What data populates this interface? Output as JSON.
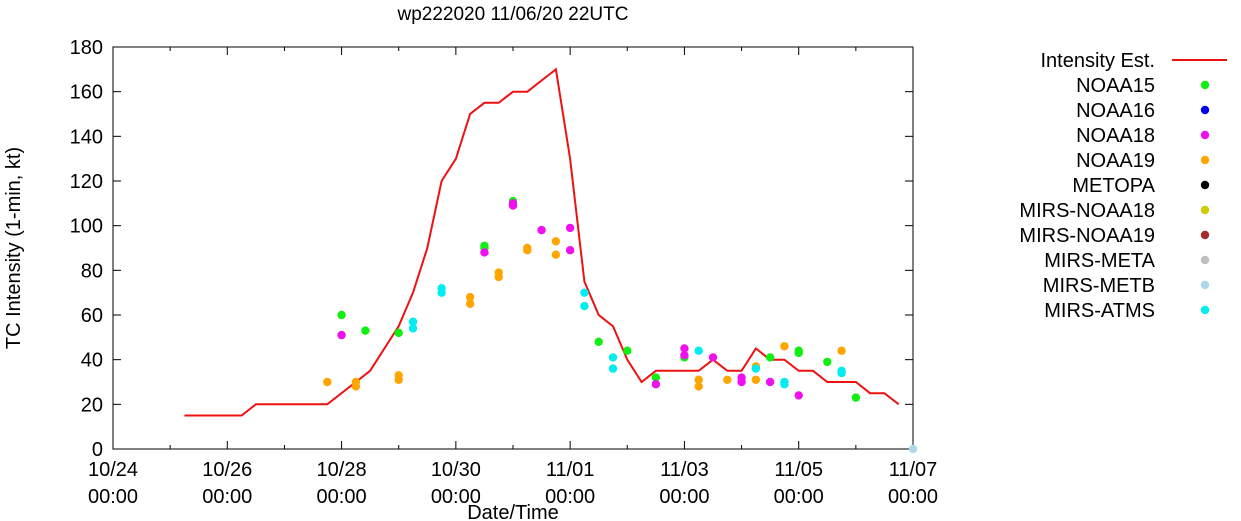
{
  "chart_data": {
    "type": "scatter",
    "title": "wp222020 11/06/20 22UTC",
    "xlabel": "Date/Time",
    "ylabel": "TC Intensity (1-min, kt)",
    "xlim": [
      "2020-10-24T00:00",
      "2020-11-07T00:00"
    ],
    "ylim": [
      0,
      180
    ],
    "grid": false,
    "legend_position": "right",
    "x_ticks": [
      {
        "x": "2020-10-24T00:00",
        "line1": "10/24",
        "line2": "00:00"
      },
      {
        "x": "2020-10-26T00:00",
        "line1": "10/26",
        "line2": "00:00"
      },
      {
        "x": "2020-10-28T00:00",
        "line1": "10/28",
        "line2": "00:00"
      },
      {
        "x": "2020-10-30T00:00",
        "line1": "10/30",
        "line2": "00:00"
      },
      {
        "x": "2020-11-01T00:00",
        "line1": "11/01",
        "line2": "00:00"
      },
      {
        "x": "2020-11-03T00:00",
        "line1": "11/03",
        "line2": "00:00"
      },
      {
        "x": "2020-11-05T00:00",
        "line1": "11/05",
        "line2": "00:00"
      },
      {
        "x": "2020-11-07T00:00",
        "line1": "11/07",
        "line2": "00:00"
      }
    ],
    "y_ticks": [
      0,
      20,
      40,
      60,
      80,
      100,
      120,
      140,
      160,
      180
    ],
    "series": [
      {
        "name": "Intensity Est.",
        "kind": "line",
        "color": "#ee1111",
        "points": [
          [
            "2020-10-25T06:00",
            15
          ],
          [
            "2020-10-26T00:00",
            15
          ],
          [
            "2020-10-26T06:00",
            15
          ],
          [
            "2020-10-26T12:00",
            20
          ],
          [
            "2020-10-27T00:00",
            20
          ],
          [
            "2020-10-27T12:00",
            20
          ],
          [
            "2020-10-27T18:00",
            20
          ],
          [
            "2020-10-28T06:00",
            30
          ],
          [
            "2020-10-28T12:00",
            35
          ],
          [
            "2020-10-28T18:00",
            45
          ],
          [
            "2020-10-29T00:00",
            55
          ],
          [
            "2020-10-29T06:00",
            70
          ],
          [
            "2020-10-29T12:00",
            90
          ],
          [
            "2020-10-29T18:00",
            120
          ],
          [
            "2020-10-30T00:00",
            130
          ],
          [
            "2020-10-30T06:00",
            150
          ],
          [
            "2020-10-30T12:00",
            155
          ],
          [
            "2020-10-30T18:00",
            155
          ],
          [
            "2020-10-31T00:00",
            160
          ],
          [
            "2020-10-31T06:00",
            160
          ],
          [
            "2020-10-31T12:00",
            165
          ],
          [
            "2020-10-31T18:00",
            170
          ],
          [
            "2020-11-01T00:00",
            130
          ],
          [
            "2020-11-01T06:00",
            75
          ],
          [
            "2020-11-01T12:00",
            60
          ],
          [
            "2020-11-01T18:00",
            55
          ],
          [
            "2020-11-02T00:00",
            40
          ],
          [
            "2020-11-02T06:00",
            30
          ],
          [
            "2020-11-02T12:00",
            35
          ],
          [
            "2020-11-02T18:00",
            35
          ],
          [
            "2020-11-03T00:00",
            35
          ],
          [
            "2020-11-03T06:00",
            35
          ],
          [
            "2020-11-03T12:00",
            40
          ],
          [
            "2020-11-03T18:00",
            35
          ],
          [
            "2020-11-04T00:00",
            35
          ],
          [
            "2020-11-04T06:00",
            45
          ],
          [
            "2020-11-04T12:00",
            40
          ],
          [
            "2020-11-04T18:00",
            40
          ],
          [
            "2020-11-05T00:00",
            35
          ],
          [
            "2020-11-05T06:00",
            35
          ],
          [
            "2020-11-05T12:00",
            30
          ],
          [
            "2020-11-05T18:00",
            30
          ],
          [
            "2020-11-06T00:00",
            30
          ],
          [
            "2020-11-06T06:00",
            25
          ],
          [
            "2020-11-06T12:00",
            25
          ],
          [
            "2020-11-06T18:00",
            20
          ]
        ]
      },
      {
        "name": "NOAA15",
        "kind": "points",
        "color": "#11ee11",
        "points": [
          [
            "2020-10-28T00:00",
            60
          ],
          [
            "2020-10-28T10:00",
            53
          ],
          [
            "2020-10-29T00:00",
            52
          ],
          [
            "2020-10-30T12:00",
            91
          ],
          [
            "2020-10-30T12:00",
            90
          ],
          [
            "2020-10-31T00:00",
            111
          ],
          [
            "2020-11-01T12:00",
            48
          ],
          [
            "2020-11-02T00:00",
            44
          ],
          [
            "2020-11-02T12:00",
            32
          ],
          [
            "2020-11-03T00:00",
            41
          ],
          [
            "2020-11-04T12:00",
            41
          ],
          [
            "2020-11-05T00:00",
            44
          ],
          [
            "2020-11-05T00:00",
            43
          ],
          [
            "2020-11-05T12:00",
            39
          ],
          [
            "2020-11-06T00:00",
            23
          ]
        ]
      },
      {
        "name": "NOAA16",
        "kind": "points",
        "color": "#0000ee",
        "points": []
      },
      {
        "name": "NOAA18",
        "kind": "points",
        "color": "#ee11ee",
        "points": [
          [
            "2020-10-28T00:00",
            51
          ],
          [
            "2020-10-30T12:00",
            88
          ],
          [
            "2020-10-31T00:00",
            110
          ],
          [
            "2020-10-31T00:00",
            109
          ],
          [
            "2020-10-31T12:00",
            98
          ],
          [
            "2020-11-01T00:00",
            99
          ],
          [
            "2020-11-01T00:00",
            89
          ],
          [
            "2020-11-02T12:00",
            29
          ],
          [
            "2020-11-03T00:00",
            45
          ],
          [
            "2020-11-03T00:00",
            42
          ],
          [
            "2020-11-03T12:00",
            41
          ],
          [
            "2020-11-04T00:00",
            32
          ],
          [
            "2020-11-04T00:00",
            30
          ],
          [
            "2020-11-04T12:00",
            30
          ],
          [
            "2020-11-05T00:00",
            24
          ]
        ]
      },
      {
        "name": "NOAA19",
        "kind": "points",
        "color": "#ffa500",
        "points": [
          [
            "2020-10-27T18:00",
            30
          ],
          [
            "2020-10-28T06:00",
            30
          ],
          [
            "2020-10-28T06:00",
            28
          ],
          [
            "2020-10-29T00:00",
            33
          ],
          [
            "2020-10-29T00:00",
            31
          ],
          [
            "2020-10-30T06:00",
            68
          ],
          [
            "2020-10-30T06:00",
            65
          ],
          [
            "2020-10-30T18:00",
            79
          ],
          [
            "2020-10-30T18:00",
            77
          ],
          [
            "2020-10-31T06:00",
            90
          ],
          [
            "2020-10-31T06:00",
            89
          ],
          [
            "2020-10-31T18:00",
            93
          ],
          [
            "2020-10-31T18:00",
            87
          ],
          [
            "2020-11-03T06:00",
            31
          ],
          [
            "2020-11-03T06:00",
            28
          ],
          [
            "2020-11-03T18:00",
            31
          ],
          [
            "2020-11-04T06:00",
            37
          ],
          [
            "2020-11-04T06:00",
            31
          ],
          [
            "2020-11-04T18:00",
            46
          ],
          [
            "2020-11-05T18:00",
            44
          ]
        ]
      },
      {
        "name": "METOPA",
        "kind": "points",
        "color": "#000000",
        "points": []
      },
      {
        "name": "MIRS-NOAA18",
        "kind": "points",
        "color": "#cccc00",
        "points": []
      },
      {
        "name": "MIRS-NOAA19",
        "kind": "points",
        "color": "#a52a2a",
        "points": []
      },
      {
        "name": "MIRS-META",
        "kind": "points",
        "color": "#bebebe",
        "points": []
      },
      {
        "name": "MIRS-METB",
        "kind": "points",
        "color": "#add8e6",
        "points": [
          [
            "2020-11-07T00:00",
            0
          ]
        ]
      },
      {
        "name": "MIRS-ATMS",
        "kind": "points",
        "color": "#00eeee",
        "points": [
          [
            "2020-10-29T06:00",
            57
          ],
          [
            "2020-10-29T06:00",
            54
          ],
          [
            "2020-10-29T18:00",
            72
          ],
          [
            "2020-10-29T18:00",
            70
          ],
          [
            "2020-11-01T06:00",
            70
          ],
          [
            "2020-11-01T06:00",
            64
          ],
          [
            "2020-11-01T18:00",
            41
          ],
          [
            "2020-11-01T18:00",
            36
          ],
          [
            "2020-11-03T06:00",
            44
          ],
          [
            "2020-11-04T06:00",
            36
          ],
          [
            "2020-11-04T18:00",
            30
          ],
          [
            "2020-11-04T18:00",
            29
          ],
          [
            "2020-11-05T18:00",
            35
          ],
          [
            "2020-11-05T18:00",
            34
          ]
        ]
      }
    ]
  }
}
